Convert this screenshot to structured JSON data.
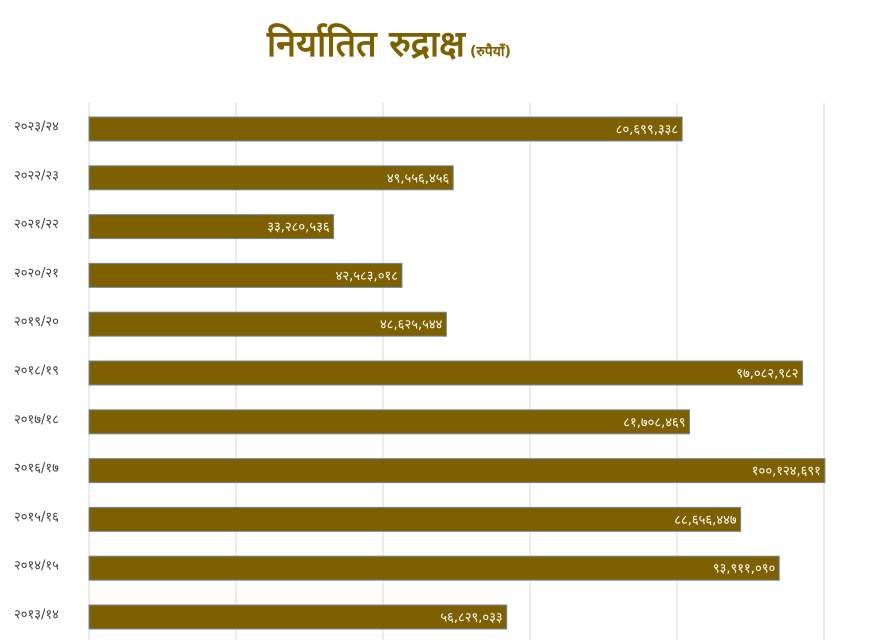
{
  "chart_data": {
    "type": "hbar",
    "title": "निर्यातित रुद्राक्ष",
    "subtitle": "(रुपैयाँ)",
    "categories": [
      "२०२३/२४",
      "२०२२/२३",
      "२०२१/२२",
      "२०२०/२१",
      "२०१९/२०",
      "२०१८/१९",
      "२०१७/१८",
      "२०१६/१७",
      "२०१५/१६",
      "२०१४/१५",
      "२०१३/१४"
    ],
    "values": [
      80699338,
      49556456,
      33280536,
      42583018,
      48625544,
      97082982,
      81708469,
      100124691,
      88656447,
      93911090,
      56829033
    ],
    "value_labels": [
      "८०,६९९,३३८",
      "४९,५५६,४५६",
      "३३,२८०,५३६",
      "४२,५८३,०१८",
      "४८,६२५,५४४",
      "९७,०८२,९८२",
      "८१,७०८,४६९",
      "१००,१२४,६९१",
      "८८,६५६,४४७",
      "९३,९११,०९०",
      "५६,८२९,०३३"
    ],
    "color": "#7f6000",
    "xlim": [
      0,
      100000000
    ],
    "xticks": [
      0,
      20000000,
      40000000,
      60000000,
      80000000,
      100000000
    ],
    "grid": true
  }
}
